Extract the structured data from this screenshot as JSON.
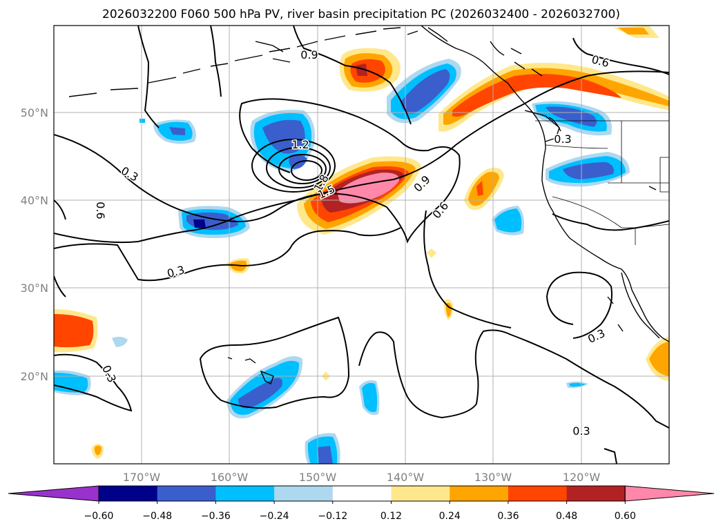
{
  "title": "2026032200 F060 500 hPa PV, river basin precipitation PC (2026032400 - 2026032700)",
  "lat_labels": [
    "50°N",
    "40°N",
    "30°N",
    "20°N"
  ],
  "lon_labels": [
    "170°W",
    "160°W",
    "150°W",
    "140°W",
    "130°W",
    "120°W"
  ],
  "colorbar": {
    "tick_labels": [
      "−0.60",
      "−0.48",
      "−0.36",
      "−0.24",
      "−0.12",
      "0.12",
      "0.24",
      "0.36",
      "0.48",
      "0.60"
    ],
    "colors": [
      "#9932cc",
      "#00008b",
      "#3a5fcd",
      "#00bfff",
      "#add8f0",
      "#ffffff",
      "#ffe88c",
      "#ffa500",
      "#ff4500",
      "#b22222",
      "#ff88aa"
    ]
  },
  "contour_labels": [
    "0.9",
    "0.6",
    "1.2",
    "0.3",
    "0.3",
    "0.6",
    "1.8",
    "1.5",
    "0.9",
    "0.6",
    "0.3",
    "0.3",
    "0.3",
    "0.3"
  ],
  "map": {
    "lat_range": [
      10,
      60
    ],
    "lon_range": [
      -180,
      -110
    ],
    "grid": true
  }
}
